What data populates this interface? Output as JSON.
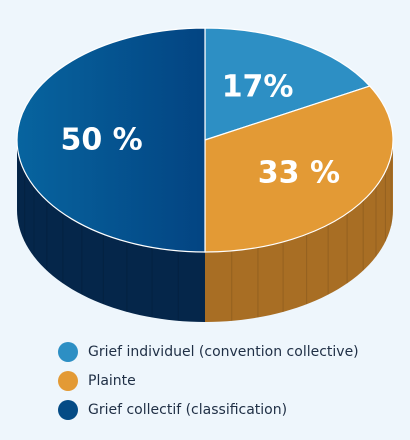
{
  "chart_data": {
    "type": "pie",
    "three_d": true,
    "title": "",
    "slices": [
      {
        "label": "Grief individuel (convention collective)",
        "value": 17,
        "display": "17%",
        "color": "#2d8fc4",
        "side_color": "#1a6a9a"
      },
      {
        "label": "Plainte",
        "value": 33,
        "display": "33 %",
        "color": "#e39a35",
        "side_color": "#a86e24"
      },
      {
        "label": "Grief collectif (classification)",
        "value": 50,
        "display": "50 %",
        "color": "#044b85",
        "side_color": "#05264a"
      }
    ],
    "legend_position": "bottom-left",
    "start": "top, clockwise"
  }
}
